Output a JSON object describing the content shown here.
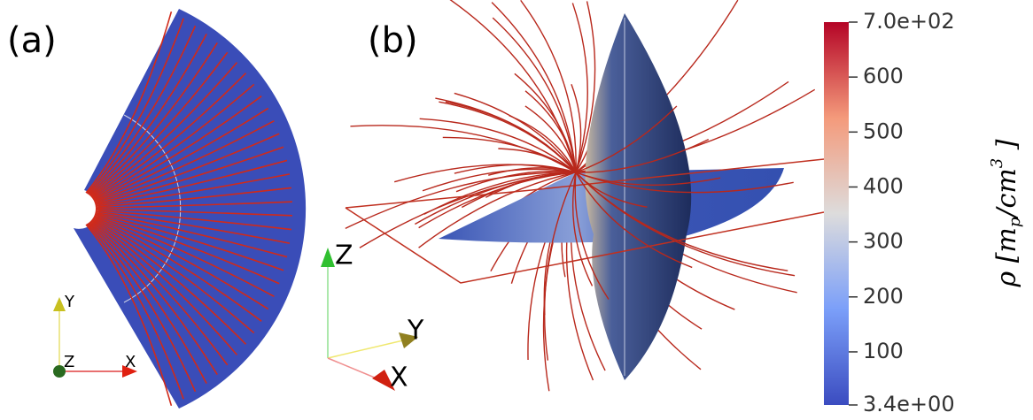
{
  "panels": [
    {
      "label": "(a)",
      "axes": [
        "Y",
        "Z",
        "X"
      ]
    },
    {
      "label": "(b)",
      "axes": [
        "Z",
        "Y",
        "X"
      ]
    }
  ],
  "colorbar": {
    "lim": [
      3.4,
      700
    ],
    "ticks": [
      {
        "value": 700,
        "label": "7.0e+02"
      },
      600,
      500,
      400,
      300,
      200,
      100,
      {
        "value": 3.4,
        "label": "3.4e+00"
      }
    ],
    "label": {
      "open": "ρ [",
      "base": "m",
      "sub": "p",
      "mid": "/cm",
      "sup": "3",
      "close": " ]"
    }
  }
}
